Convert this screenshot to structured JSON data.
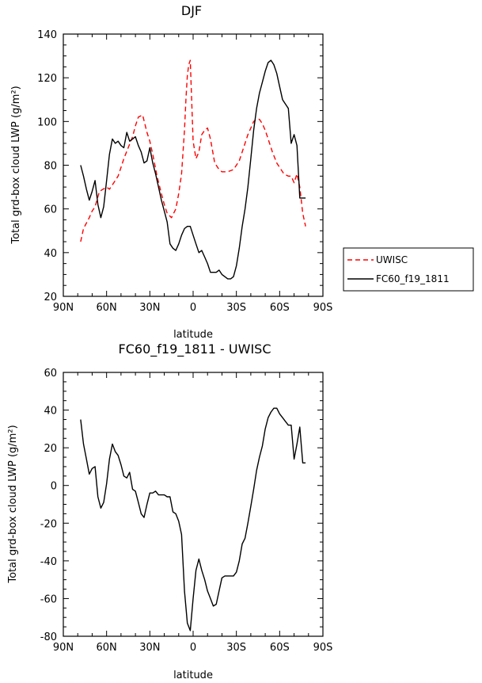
{
  "chart_data": [
    {
      "type": "line",
      "title": "DJF",
      "xlabel": "latitude",
      "ylabel": "Total grd-box cloud LWP (g/m²)",
      "xticks": [
        "90N",
        "60N",
        "30N",
        "0",
        "30S",
        "60S",
        "90S"
      ],
      "yticks": [
        "20",
        "40",
        "60",
        "80",
        "100",
        "120",
        "140"
      ],
      "xlim": [
        90,
        -90
      ],
      "ylim": [
        20,
        140
      ],
      "legend_position": "right",
      "grid": false,
      "series": [
        {
          "name": "UWISC",
          "color": "#ff0000",
          "dash": "dashed",
          "x": [
            78,
            76,
            72,
            70,
            68,
            65,
            60,
            58,
            55,
            52,
            50,
            48,
            45,
            42,
            40,
            38,
            35,
            32,
            30,
            28,
            25,
            22,
            20,
            18,
            15,
            12,
            10,
            8,
            6,
            5,
            4,
            3,
            2,
            0,
            -2,
            -4,
            -6,
            -8,
            -10,
            -12,
            -15,
            -18,
            -20,
            -24,
            -28,
            -32,
            -35,
            -38,
            -40,
            -42,
            -44,
            -46,
            -48,
            -50,
            -52,
            -55,
            -58,
            -60,
            -63,
            -66,
            -68,
            -70,
            -72,
            -74,
            -76,
            -78
          ],
          "y": [
            45,
            51,
            56,
            59,
            61,
            68,
            70,
            69,
            72,
            75,
            79,
            83,
            88,
            93,
            98,
            102,
            103,
            95,
            91,
            85,
            75,
            67,
            62,
            58,
            56,
            60,
            67,
            76,
            96,
            110,
            121,
            126,
            128,
            91,
            83,
            86,
            94,
            96,
            97,
            92,
            81,
            78,
            77,
            77,
            78,
            82,
            88,
            94,
            97,
            100,
            101,
            101,
            99,
            96,
            92,
            86,
            81,
            79,
            76,
            75,
            75,
            72,
            76,
            70,
            58,
            52
          ]
        },
        {
          "name": "FC60_f19_1811",
          "color": "#000000",
          "dash": "solid",
          "x": [
            78,
            76,
            74,
            72,
            70,
            68,
            66,
            64,
            62,
            60,
            58,
            56,
            54,
            52,
            50,
            48,
            46,
            44,
            42,
            40,
            38,
            36,
            34,
            32,
            30,
            28,
            26,
            24,
            22,
            20,
            18,
            16,
            14,
            12,
            10,
            8,
            6,
            4,
            2,
            0,
            -2,
            -4,
            -6,
            -8,
            -10,
            -12,
            -14,
            -16,
            -18,
            -20,
            -22,
            -24,
            -26,
            -28,
            -30,
            -32,
            -34,
            -36,
            -38,
            -40,
            -42,
            -44,
            -46,
            -48,
            -50,
            -52,
            -54,
            -56,
            -58,
            -60,
            -62,
            -64,
            -66,
            -68,
            -70,
            -72,
            -74,
            -76,
            -78
          ],
          "y": [
            80,
            75,
            69,
            64,
            68,
            73,
            62,
            56,
            61,
            73,
            85,
            92,
            90,
            91,
            89,
            88,
            95,
            91,
            92,
            93,
            89,
            86,
            81,
            82,
            88,
            81,
            76,
            70,
            64,
            59,
            54,
            44,
            42,
            41,
            44,
            48,
            51,
            52,
            52,
            48,
            44,
            40,
            41,
            38,
            35,
            31,
            31,
            31,
            32,
            30,
            29,
            28,
            28,
            29,
            34,
            42,
            52,
            60,
            70,
            83,
            96,
            106,
            113,
            118,
            123,
            127,
            128,
            126,
            122,
            116,
            110,
            108,
            106,
            90,
            94,
            89,
            65,
            65,
            65
          ]
        }
      ]
    },
    {
      "type": "line",
      "title": "FC60_f19_1811 - UWISC",
      "xlabel": "latitude",
      "ylabel": "Total grd-box cloud LWP (g/m²)",
      "xticks": [
        "90N",
        "60N",
        "30N",
        "0",
        "30S",
        "60S",
        "90S"
      ],
      "yticks": [
        "-80",
        "-60",
        "-40",
        "-20",
        "0",
        "20",
        "40",
        "60"
      ],
      "xlim": [
        90,
        -90
      ],
      "ylim": [
        -80,
        60
      ],
      "grid": false,
      "series": [
        {
          "color": "#000000",
          "dash": "solid",
          "x": [
            78,
            76,
            74,
            72,
            70,
            68,
            66,
            64,
            62,
            60,
            58,
            56,
            54,
            52,
            50,
            48,
            46,
            44,
            42,
            40,
            38,
            36,
            34,
            32,
            30,
            28,
            26,
            24,
            22,
            20,
            18,
            16,
            14,
            12,
            10,
            8,
            6,
            4,
            2,
            0,
            -2,
            -4,
            -6,
            -8,
            -10,
            -12,
            -14,
            -16,
            -18,
            -20,
            -22,
            -24,
            -26,
            -28,
            -30,
            -32,
            -34,
            -36,
            -38,
            -40,
            -42,
            -44,
            -46,
            -48,
            -50,
            -52,
            -54,
            -56,
            -58,
            -60,
            -62,
            -64,
            -66,
            -68,
            -70,
            -72,
            -74,
            -76,
            -78
          ],
          "y": [
            35,
            22,
            14,
            6,
            9,
            10,
            -6,
            -12,
            -9,
            1,
            14,
            22,
            18,
            16,
            11,
            5,
            4,
            7,
            -2,
            -3,
            -9,
            -15,
            -17,
            -10,
            -4,
            -4,
            -3,
            -5,
            -5,
            -5,
            -6,
            -6,
            -14,
            -15,
            -19,
            -26,
            -56,
            -73,
            -77,
            -60,
            -45,
            -39,
            -45,
            -50,
            -56,
            -60,
            -64,
            -63,
            -56,
            -49,
            -48,
            -48,
            -48,
            -48,
            -46,
            -40,
            -31,
            -28,
            -20,
            -11,
            -2,
            8,
            15,
            21,
            30,
            36,
            39,
            41,
            41,
            38,
            36,
            34,
            32,
            32,
            14,
            22,
            31,
            12,
            12
          ]
        }
      ]
    }
  ]
}
